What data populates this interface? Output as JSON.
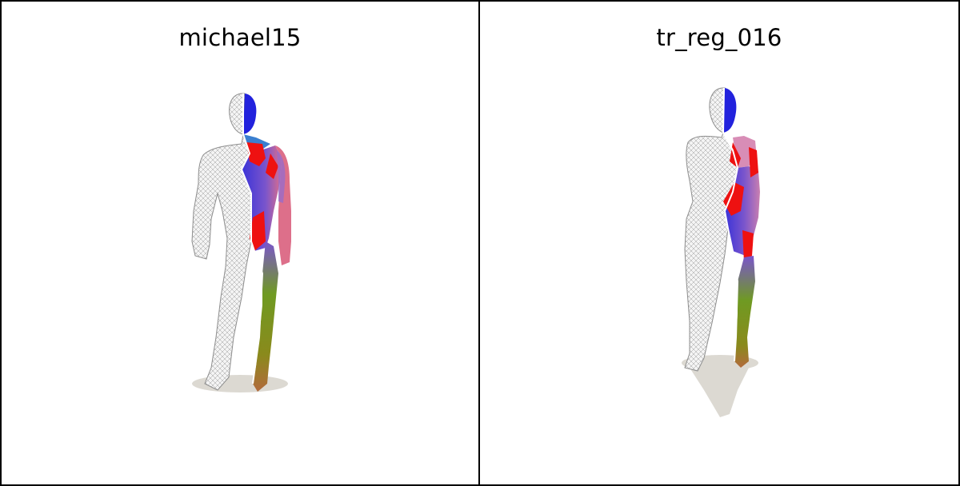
{
  "panes": [
    {
      "title": "michael15"
    },
    {
      "title": "tr_reg_016"
    }
  ],
  "colors": {
    "mesh_white": "#f3f3f3",
    "mesh_line": "#9a9a9a",
    "shadow": "#d9d6cf",
    "blue": "#2222dd",
    "red": "#ee1111",
    "violet": "#7a55cc",
    "pink": "#dd6f8a",
    "green": "#6f9a22",
    "olive": "#8a8a1c"
  }
}
